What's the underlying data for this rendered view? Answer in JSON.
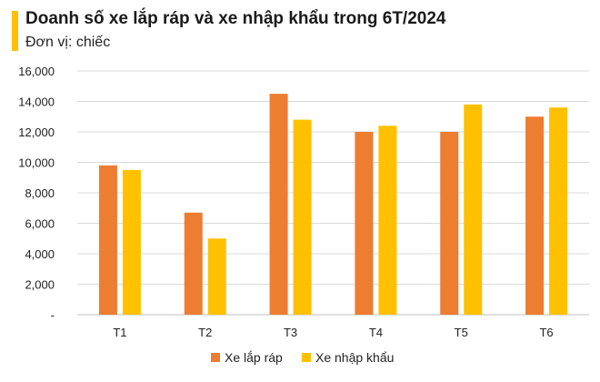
{
  "header": {
    "title": "Doanh số xe lắp ráp và xe nhập khẩu trong 6T/2024",
    "subtitle": "Đơn vị: chiếc"
  },
  "colors": {
    "accent": "#FFC000",
    "series_1": "#ED7D31",
    "series_2": "#FFC000"
  },
  "chart_data": {
    "type": "bar",
    "title": "Doanh số xe lắp ráp và xe nhập khẩu trong 6T/2024",
    "subtitle": "Đơn vị: chiếc",
    "categories": [
      "T1",
      "T2",
      "T3",
      "T4",
      "T5",
      "T6"
    ],
    "series": [
      {
        "name": "Xe lắp ráp",
        "color": "#ED7D31",
        "values": [
          9800,
          6700,
          14500,
          12000,
          12000,
          13000
        ]
      },
      {
        "name": "Xe nhập khẩu",
        "color": "#FFC000",
        "values": [
          9500,
          5000,
          12800,
          12400,
          13800,
          13600
        ]
      }
    ],
    "ylim": [
      0,
      16000
    ],
    "yticks": [
      0,
      2000,
      4000,
      6000,
      8000,
      10000,
      12000,
      14000,
      16000
    ],
    "ytick_labels": [
      "-",
      "2,000",
      "4,000",
      "6,000",
      "8,000",
      "10,000",
      "12,000",
      "14,000",
      "16,000"
    ],
    "grid": true,
    "legend_position": "bottom"
  }
}
